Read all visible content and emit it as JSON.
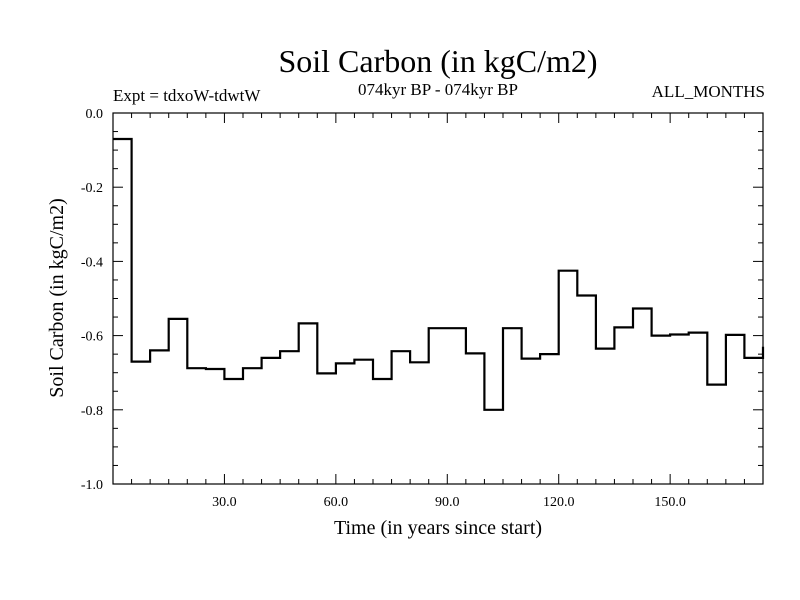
{
  "chart_data": {
    "type": "line",
    "style": "step",
    "title": "Soil Carbon (in kgC/m2)",
    "subtitle_left": "Expt = tdxoW-tdwtW",
    "subtitle_center": "074kyr BP - 074kyr BP",
    "subtitle_right": "ALL_MONTHS",
    "xlabel": "Time (in years since start)",
    "ylabel": "Soil Carbon (in kgC/m2)",
    "xlim": [
      0,
      175
    ],
    "ylim": [
      -1.0,
      0.0
    ],
    "xticks": [
      30,
      60,
      90,
      120,
      150
    ],
    "xtick_labels": [
      "30.0",
      "60.0",
      "90.0",
      "120.0",
      "150.0"
    ],
    "yticks": [
      0.0,
      -0.2,
      -0.4,
      -0.6,
      -0.8,
      -1.0
    ],
    "ytick_labels": [
      "0.0",
      "-0.2",
      "-0.4",
      "-0.6",
      "-0.8",
      "-1.0"
    ],
    "grid": false,
    "series": [
      {
        "name": "Soil Carbon",
        "color": "#000000",
        "x": [
          0,
          5,
          10,
          15,
          20,
          25,
          30,
          35,
          40,
          45,
          50,
          55,
          60,
          65,
          70,
          75,
          80,
          85,
          90,
          95,
          100,
          105,
          110,
          115,
          120,
          125,
          130,
          135,
          140,
          145,
          150,
          155,
          160,
          165,
          170,
          175
        ],
        "values": [
          -0.07,
          -0.67,
          -0.64,
          -0.555,
          -0.688,
          -0.69,
          -0.717,
          -0.688,
          -0.66,
          -0.642,
          -0.567,
          -0.702,
          -0.675,
          -0.665,
          -0.717,
          -0.642,
          -0.672,
          -0.58,
          -0.58,
          -0.648,
          -0.8,
          -0.58,
          -0.662,
          -0.65,
          -0.425,
          -0.492,
          -0.635,
          -0.578,
          -0.527,
          -0.6,
          -0.597,
          -0.592,
          -0.732,
          -0.598,
          -0.66,
          -0.63
        ]
      }
    ]
  }
}
